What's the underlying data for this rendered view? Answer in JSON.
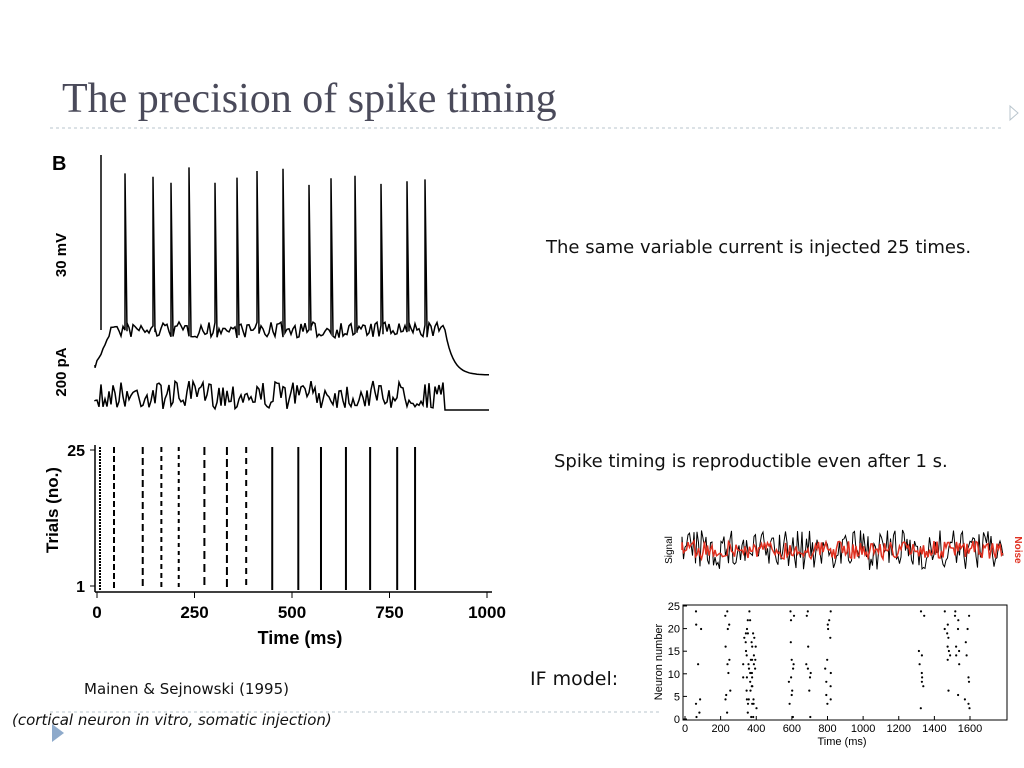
{
  "title": "The precision of spike timing",
  "figure_left": {
    "panel_label": "B",
    "scale_labels": [
      "30 mV",
      "200 pA"
    ],
    "ylabel": "Trials (no.)",
    "yticks": [
      25,
      1
    ],
    "xticks": [
      0,
      250,
      500,
      750,
      1000
    ],
    "xlabel": "Time (ms)"
  },
  "caption": "Mainen & Sejnowski (1995)",
  "note": "(cortical neuron in vitro, somatic injection)",
  "text1": "The same variable current is injected 25 times.",
  "text2": "Spike timing is reproductible even after 1 s.",
  "if_label": "IF model:",
  "figure_right": {
    "signal_label": "Signal",
    "noise_label": "Noise",
    "ylabel": "Neuron number",
    "yticks": [
      0,
      5,
      10,
      15,
      20,
      25
    ],
    "xticks": [
      0,
      200,
      400,
      600,
      800,
      1000,
      1200,
      1400,
      1600
    ],
    "xlabel": "Time (ms)"
  }
}
